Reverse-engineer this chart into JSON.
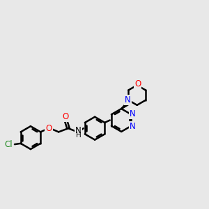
{
  "bg_color": "#e8e8e8",
  "bond_color": "#000000",
  "bond_width": 1.8,
  "dbo": 0.055,
  "figsize": [
    3.0,
    3.0
  ],
  "dpi": 100,
  "xlim": [
    -3.5,
    3.5
  ],
  "ylim": [
    -2.0,
    2.5
  ]
}
